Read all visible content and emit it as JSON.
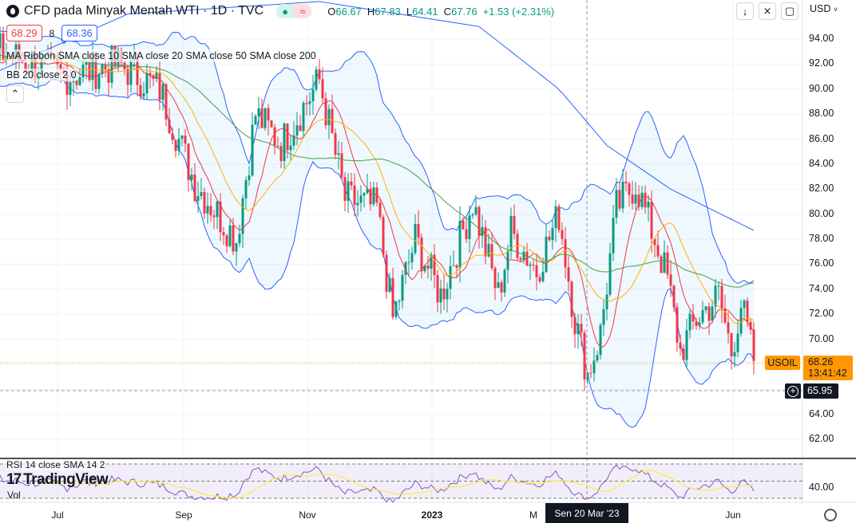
{
  "header": {
    "symbol_title": "CFD pada Minyak Mentah WTI · 1D · TVC",
    "status_dot": "market-open-dot",
    "status_wave": "≈",
    "ohlc": {
      "o_label": "O",
      "o": "66.67",
      "h_label": "H",
      "h": "67.83",
      "l_label": "L",
      "l": "64.41",
      "c_label": "C",
      "c": "67.76",
      "change": "+1.53 (+2.31%)"
    },
    "bid": "68.29",
    "spread": "8",
    "ask": "68.36"
  },
  "legends": {
    "ma_ribbon": "MA Ribbon SMA close 10 SMA close 20 SMA close 50 SMA close 200",
    "bb": "BB 20 close 2 0",
    "rsi": "RSI 14 close SMA 14 2",
    "vol": "Vol"
  },
  "toolbar": {
    "scroll_down": "↓",
    "collapse": "⨯",
    "fullscreen": "▢",
    "currency": "USD"
  },
  "price_axis": {
    "labels": [
      "94.00",
      "92.00",
      "90.00",
      "88.00",
      "86.00",
      "84.00",
      "82.00",
      "80.00",
      "78.00",
      "76.00",
      "74.00",
      "72.00",
      "70.00",
      "64.00",
      "62.00"
    ],
    "rsi_label": "40.00"
  },
  "last_price": {
    "symbol": "USOIL",
    "price": "68.26",
    "countdown": "13:41:42"
  },
  "crosshair": {
    "price": "65.95",
    "date": "Sen 20 Mar '23"
  },
  "time_axis": {
    "labels": [
      "Jul",
      "Sep",
      "Nov",
      "2023",
      "M",
      "Jun"
    ]
  },
  "watermark": "TradingView",
  "colors": {
    "up": "#089981",
    "down": "#f23645",
    "sma10": "#f23645",
    "sma20": "#ffb300",
    "sma50": "#43a047",
    "sma200": "#2962ff",
    "bb": "#2962ff",
    "last": "#ff9800",
    "rsi": "#7e57c2",
    "rsi_ma": "#ffeb3b"
  },
  "price_path": [
    [
      0,
      93
    ],
    [
      20,
      91
    ],
    [
      37,
      92
    ],
    [
      50,
      90
    ],
    [
      61,
      82.5
    ],
    [
      74,
      78
    ],
    [
      80,
      88
    ],
    [
      88,
      85.6
    ],
    [
      100,
      90.7
    ],
    [
      108,
      81.2
    ],
    [
      118,
      80.5
    ],
    [
      123,
      71.6
    ],
    [
      130,
      78
    ],
    [
      138,
      73.5
    ],
    [
      148,
      81
    ],
    [
      156,
      73.5
    ],
    [
      160,
      78.6
    ],
    [
      168,
      75.5
    ],
    [
      175,
      80
    ],
    [
      180,
      71.6
    ],
    [
      184,
      67.2
    ],
    [
      188,
      70.4
    ],
    [
      193,
      80.5
    ],
    [
      199,
      82.5
    ],
    [
      205,
      78
    ],
    [
      209,
      74.8
    ],
    [
      213,
      69
    ],
    [
      218,
      71.6
    ],
    [
      225,
      73.5
    ],
    [
      229,
      69
    ],
    [
      232,
      72.9
    ],
    [
      236,
      68.26
    ]
  ],
  "sma200_path": [
    [
      0,
      91.5
    ],
    [
      40,
      96
    ],
    [
      100,
      97
    ],
    [
      150,
      95
    ],
    [
      175,
      90
    ],
    [
      190,
      85.5
    ],
    [
      210,
      82
    ],
    [
      236,
      78.7
    ]
  ]
}
